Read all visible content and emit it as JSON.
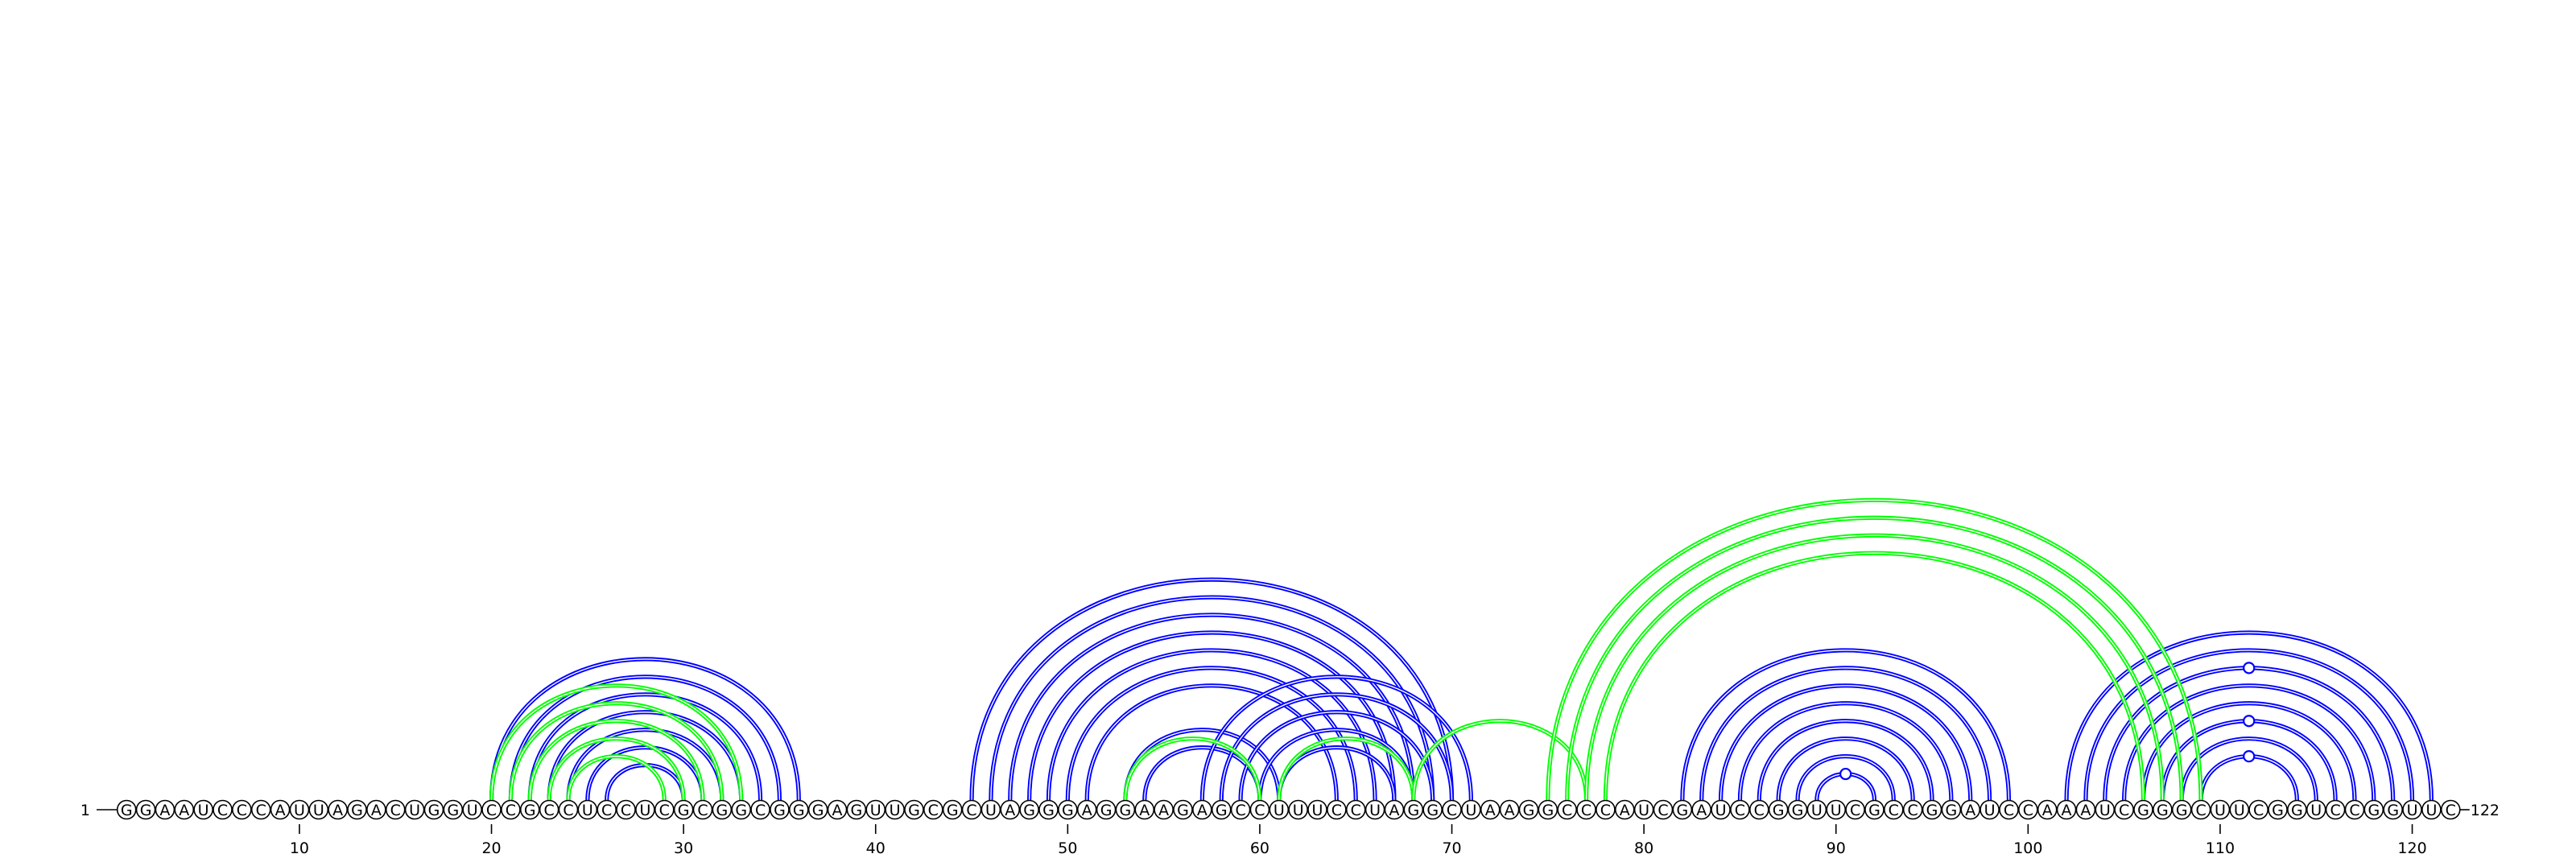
{
  "sequence": "GGAAUCCCAUUAGACUGGUCCGCCUCCUCGCGGCGGGAGUUGCGCUAGGGAGGAAGAGCCUUUCCUAGGCUAAGGCCCAUCGAUCCGGUUCGCCGGAUCCAAAUCGGGCUUCGGUCCGGUUC",
  "start_label": "1",
  "end_label": "122",
  "ticks": [
    10,
    20,
    30,
    40,
    50,
    60,
    70,
    80,
    90,
    100,
    110,
    120
  ],
  "colors": {
    "structure_a": "#0000ff",
    "structure_b": "#00ff00",
    "nucleotide_outline": "#000000"
  },
  "arcs": {
    "blue": [
      [
        20,
        36
      ],
      [
        21,
        35
      ],
      [
        22,
        34
      ],
      [
        23,
        33
      ],
      [
        24,
        32
      ],
      [
        25,
        31
      ],
      [
        26,
        30
      ],
      [
        45,
        70
      ],
      [
        46,
        69
      ],
      [
        47,
        68
      ],
      [
        48,
        67
      ],
      [
        49,
        66
      ],
      [
        50,
        65
      ],
      [
        51,
        64
      ],
      [
        53,
        61
      ],
      [
        54,
        60
      ],
      [
        57,
        71
      ],
      [
        58,
        70
      ],
      [
        59,
        69
      ],
      [
        60,
        68
      ],
      [
        61,
        67
      ],
      [
        82,
        99
      ],
      [
        83,
        98
      ],
      [
        84,
        97
      ],
      [
        85,
        96
      ],
      [
        86,
        95
      ],
      [
        87,
        94
      ],
      [
        88,
        93
      ],
      [
        89,
        92
      ],
      [
        102,
        121
      ],
      [
        103,
        120
      ],
      [
        104,
        119
      ],
      [
        105,
        118
      ],
      [
        106,
        117
      ],
      [
        107,
        116
      ],
      [
        108,
        115
      ],
      [
        109,
        114
      ]
    ],
    "green": [
      [
        20,
        33
      ],
      [
        21,
        32
      ],
      [
        22,
        31
      ],
      [
        23,
        30
      ],
      [
        24,
        29
      ],
      [
        53,
        60
      ],
      [
        61,
        68
      ],
      [
        68,
        77
      ],
      [
        75,
        109
      ],
      [
        76,
        108
      ],
      [
        77,
        107
      ],
      [
        78,
        106
      ]
    ]
  },
  "loop_markers": [
    {
      "i": 89,
      "j": 92
    },
    {
      "i": 109,
      "j": 114
    },
    {
      "i": 107,
      "j": 116
    },
    {
      "i": 104,
      "j": 119
    }
  ]
}
